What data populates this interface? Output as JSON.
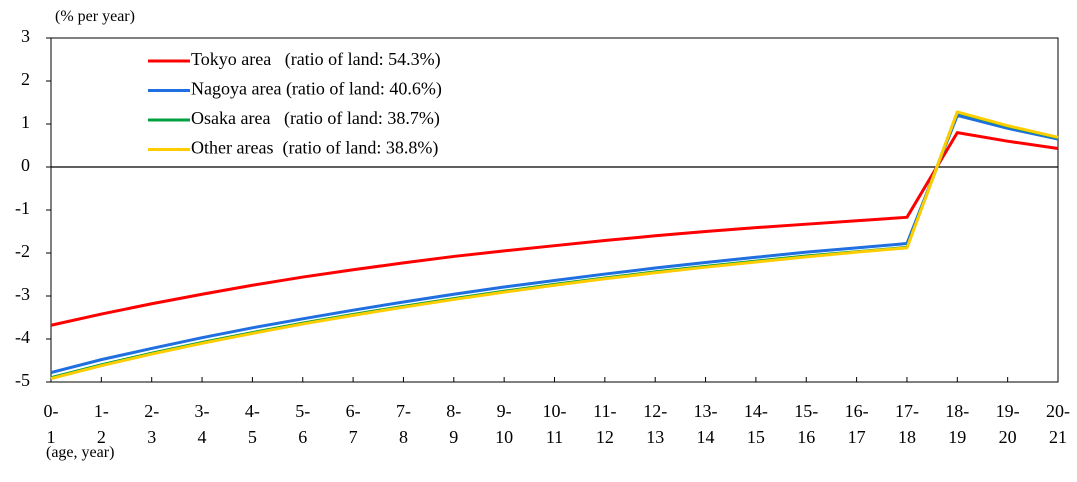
{
  "chart_data": {
    "type": "line",
    "y_label": "(% per year)",
    "x_label": "(age, year)",
    "categories": [
      "0-\n1",
      "1-\n2",
      "2-\n3",
      "3-\n4",
      "4-\n5",
      "5-\n6",
      "6-\n7",
      "7-\n8",
      "8-\n9",
      "9-\n10",
      "10-\n11",
      "11-\n12",
      "12-\n13",
      "13-\n14",
      "14-\n15",
      "15-\n16",
      "16-\n17",
      "17-\n18",
      "18-\n19",
      "19-\n20",
      "20-\n21"
    ],
    "series": [
      {
        "name": "Tokyo area   (ratio of land: 54.3%)",
        "color": "#ff0000",
        "values": [
          -3.68,
          -3.42,
          -3.18,
          -2.96,
          -2.75,
          -2.56,
          -2.39,
          -2.23,
          -2.08,
          -1.95,
          -1.83,
          -1.71,
          -1.6,
          -1.5,
          -1.41,
          -1.33,
          -1.25,
          -1.17,
          0.8,
          0.6,
          0.43
        ]
      },
      {
        "name": "Nagoya area (ratio of land: 40.6%)",
        "color": "#1f6fe0",
        "values": [
          -4.78,
          -4.48,
          -4.22,
          -3.97,
          -3.74,
          -3.53,
          -3.33,
          -3.14,
          -2.96,
          -2.79,
          -2.64,
          -2.49,
          -2.35,
          -2.22,
          -2.1,
          -1.98,
          -1.88,
          -1.78,
          1.2,
          0.9,
          0.65
        ]
      },
      {
        "name": "Osaka area   (ratio of land: 38.7%)",
        "color": "#00a040",
        "values": [
          -4.9,
          -4.6,
          -4.33,
          -4.08,
          -3.85,
          -3.63,
          -3.43,
          -3.24,
          -3.06,
          -2.89,
          -2.73,
          -2.58,
          -2.44,
          -2.31,
          -2.19,
          -2.07,
          -1.97,
          -1.87,
          1.27,
          0.95,
          0.68
        ]
      },
      {
        "name": "Other areas  (ratio of land: 38.8%)",
        "color": "#ffcc00",
        "values": [
          -4.92,
          -4.62,
          -4.35,
          -4.1,
          -3.87,
          -3.65,
          -3.45,
          -3.26,
          -3.08,
          -2.91,
          -2.75,
          -2.6,
          -2.46,
          -2.33,
          -2.21,
          -2.09,
          -1.98,
          -1.88,
          1.28,
          0.96,
          0.69
        ]
      }
    ],
    "ylim": [
      -5,
      3
    ],
    "yticks": [
      -5,
      -4,
      -3,
      -2,
      -1,
      0,
      1,
      2,
      3
    ],
    "legend": "upper left"
  }
}
